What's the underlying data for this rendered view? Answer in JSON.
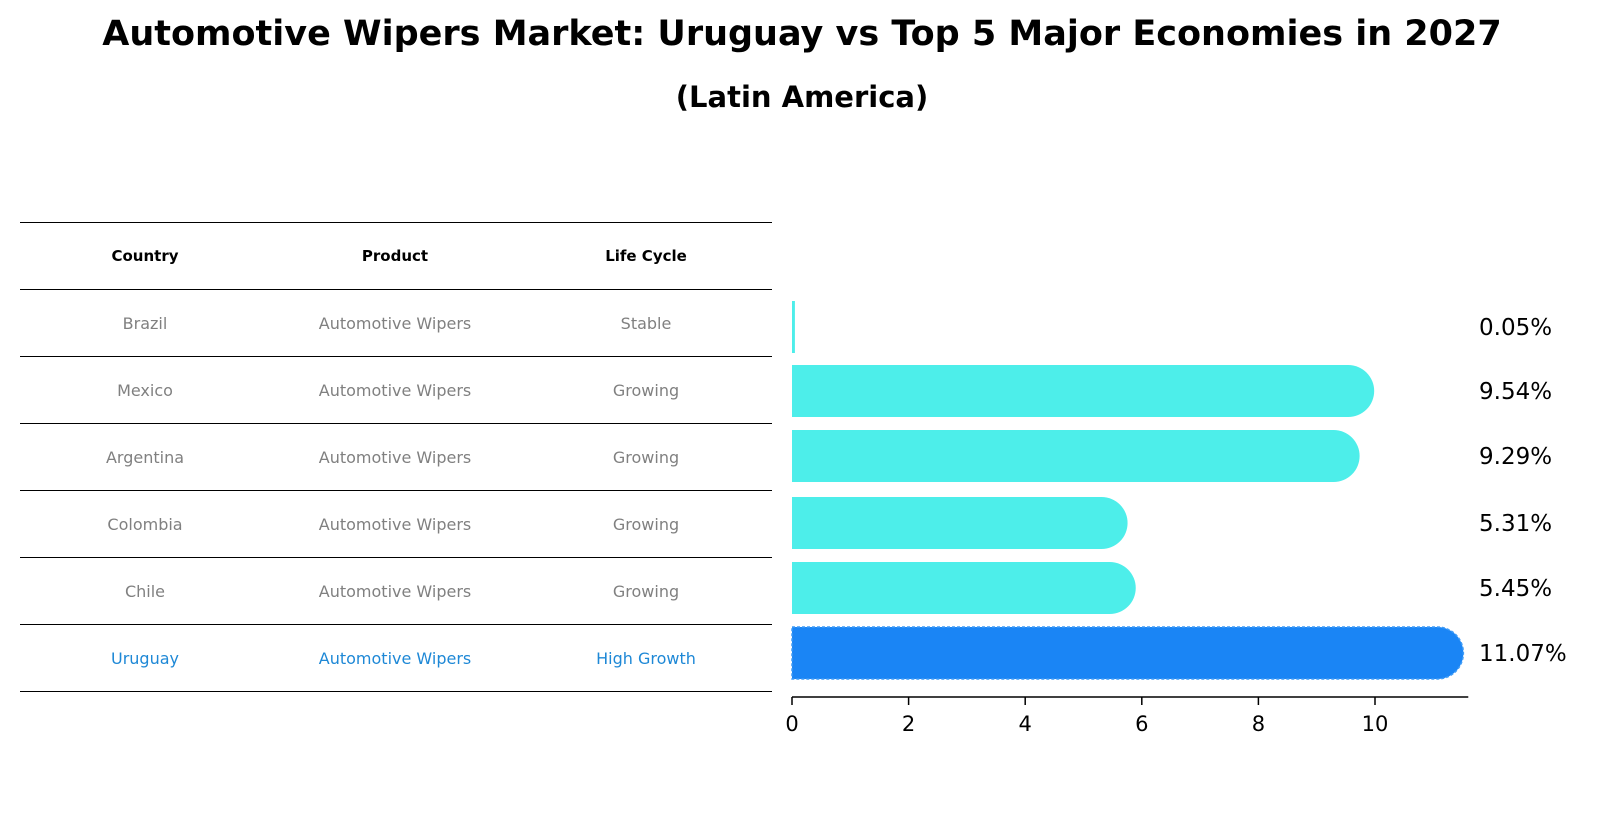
{
  "title": "Automotive Wipers Market: Uruguay vs Top 5 Major Economies in 2027",
  "subtitle": "(Latin America)",
  "table": {
    "headers": [
      "Country",
      "Product",
      "Life Cycle"
    ],
    "rows": [
      [
        "Brazil",
        "Automotive Wipers",
        "Stable"
      ],
      [
        "Mexico",
        "Automotive Wipers",
        "Growing"
      ],
      [
        "Argentina",
        "Automotive Wipers",
        "Growing"
      ],
      [
        "Colombia",
        "Automotive Wipers",
        "Growing"
      ],
      [
        "Chile",
        "Automotive Wipers",
        "Growing"
      ],
      [
        "Uruguay",
        "Automotive Wipers",
        "High Growth"
      ]
    ],
    "highlight_color": "#1e88d6"
  },
  "chart_data": {
    "type": "bar",
    "orientation": "horizontal",
    "categories": [
      "Brazil",
      "Mexico",
      "Argentina",
      "Colombia",
      "Chile",
      "Uruguay"
    ],
    "values": [
      0.05,
      9.54,
      9.29,
      5.31,
      5.45,
      11.07
    ],
    "labels": [
      "0.05%",
      "9.54%",
      "9.29%",
      "5.31%",
      "5.45%",
      "11.07%"
    ],
    "highlight": "Uruguay",
    "colors": {
      "default": "#4deeea",
      "highlight": "#1a85f5"
    },
    "xlim": [
      0,
      11.6
    ],
    "xticks": [
      0,
      2,
      4,
      6,
      8,
      10
    ],
    "xlabel": "",
    "ylabel": "",
    "grid": false
  }
}
